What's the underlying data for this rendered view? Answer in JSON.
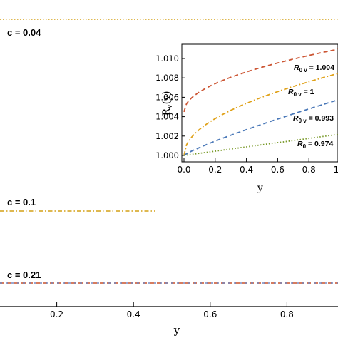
{
  "chart_data": [
    {
      "type": "line",
      "xlabel": "y",
      "ylabel": "",
      "xlim": [
        0,
        1
      ],
      "x_ticks": [
        "0.2",
        "0.4",
        "0.6",
        "0.8"
      ],
      "grid": false,
      "series": [
        {
          "name": "c = 0.04",
          "color": "#d4a017",
          "style": "dotted",
          "points": [
            [
              0,
              1.0
            ],
            [
              1,
              1.0
            ]
          ]
        },
        {
          "name": "c = 0.1",
          "color": "#d4a017",
          "style": "dashdot",
          "points": [
            [
              0,
              1.0
            ],
            [
              1,
              1.0
            ]
          ]
        },
        {
          "name": "c = 0.21",
          "color": "#c8502a",
          "style": "dashed",
          "points": [
            [
              0,
              1.0
            ],
            [
              1,
              1.0
            ]
          ]
        }
      ],
      "labels": [
        "c = 0.04",
        "c = 0.1",
        "c = 0.21"
      ]
    },
    {
      "type": "line",
      "xlabel": "y",
      "ylabel": "R_v(y)",
      "xlim": [
        0,
        1
      ],
      "ylim": [
        0.999,
        1.011
      ],
      "x_ticks": [
        "0.0",
        "0.2",
        "0.4",
        "0.6",
        "0.8",
        "1.0"
      ],
      "y_ticks": [
        "1.000",
        "1.002",
        "1.004",
        "1.006",
        "1.008",
        "1.010"
      ],
      "grid": false,
      "series": [
        {
          "name": "R0 v = 1.004",
          "color": "#cc5533",
          "style": "dashed",
          "model": "sqrt",
          "y0": 1.0045,
          "y1": 1.011
        },
        {
          "name": "R0 v = 1",
          "color": "#e0a21a",
          "style": "dashdot",
          "model": "sqrt",
          "y0": 1.0,
          "y1": 1.0085
        },
        {
          "name": "R0 v = 0.993",
          "color": "#4a78b8",
          "style": "dashed",
          "model": "linear-ish",
          "y0": 1.0,
          "y1": 1.0058
        },
        {
          "name": "R0 = 0.974",
          "color": "#7a9a2a",
          "style": "dotted",
          "model": "linear",
          "y0": 1.0,
          "y1": 1.0022
        }
      ],
      "legend_labels": [
        {
          "main": "R",
          "sub": "0 v",
          "rest": " = 1.004"
        },
        {
          "main": "R",
          "sub": "0 v",
          "rest": " = 1"
        },
        {
          "main": "R",
          "sub": "0 v",
          "rest": " = 0.993"
        },
        {
          "main": "R",
          "sub": "0",
          "rest": " = 0.974"
        }
      ]
    }
  ]
}
